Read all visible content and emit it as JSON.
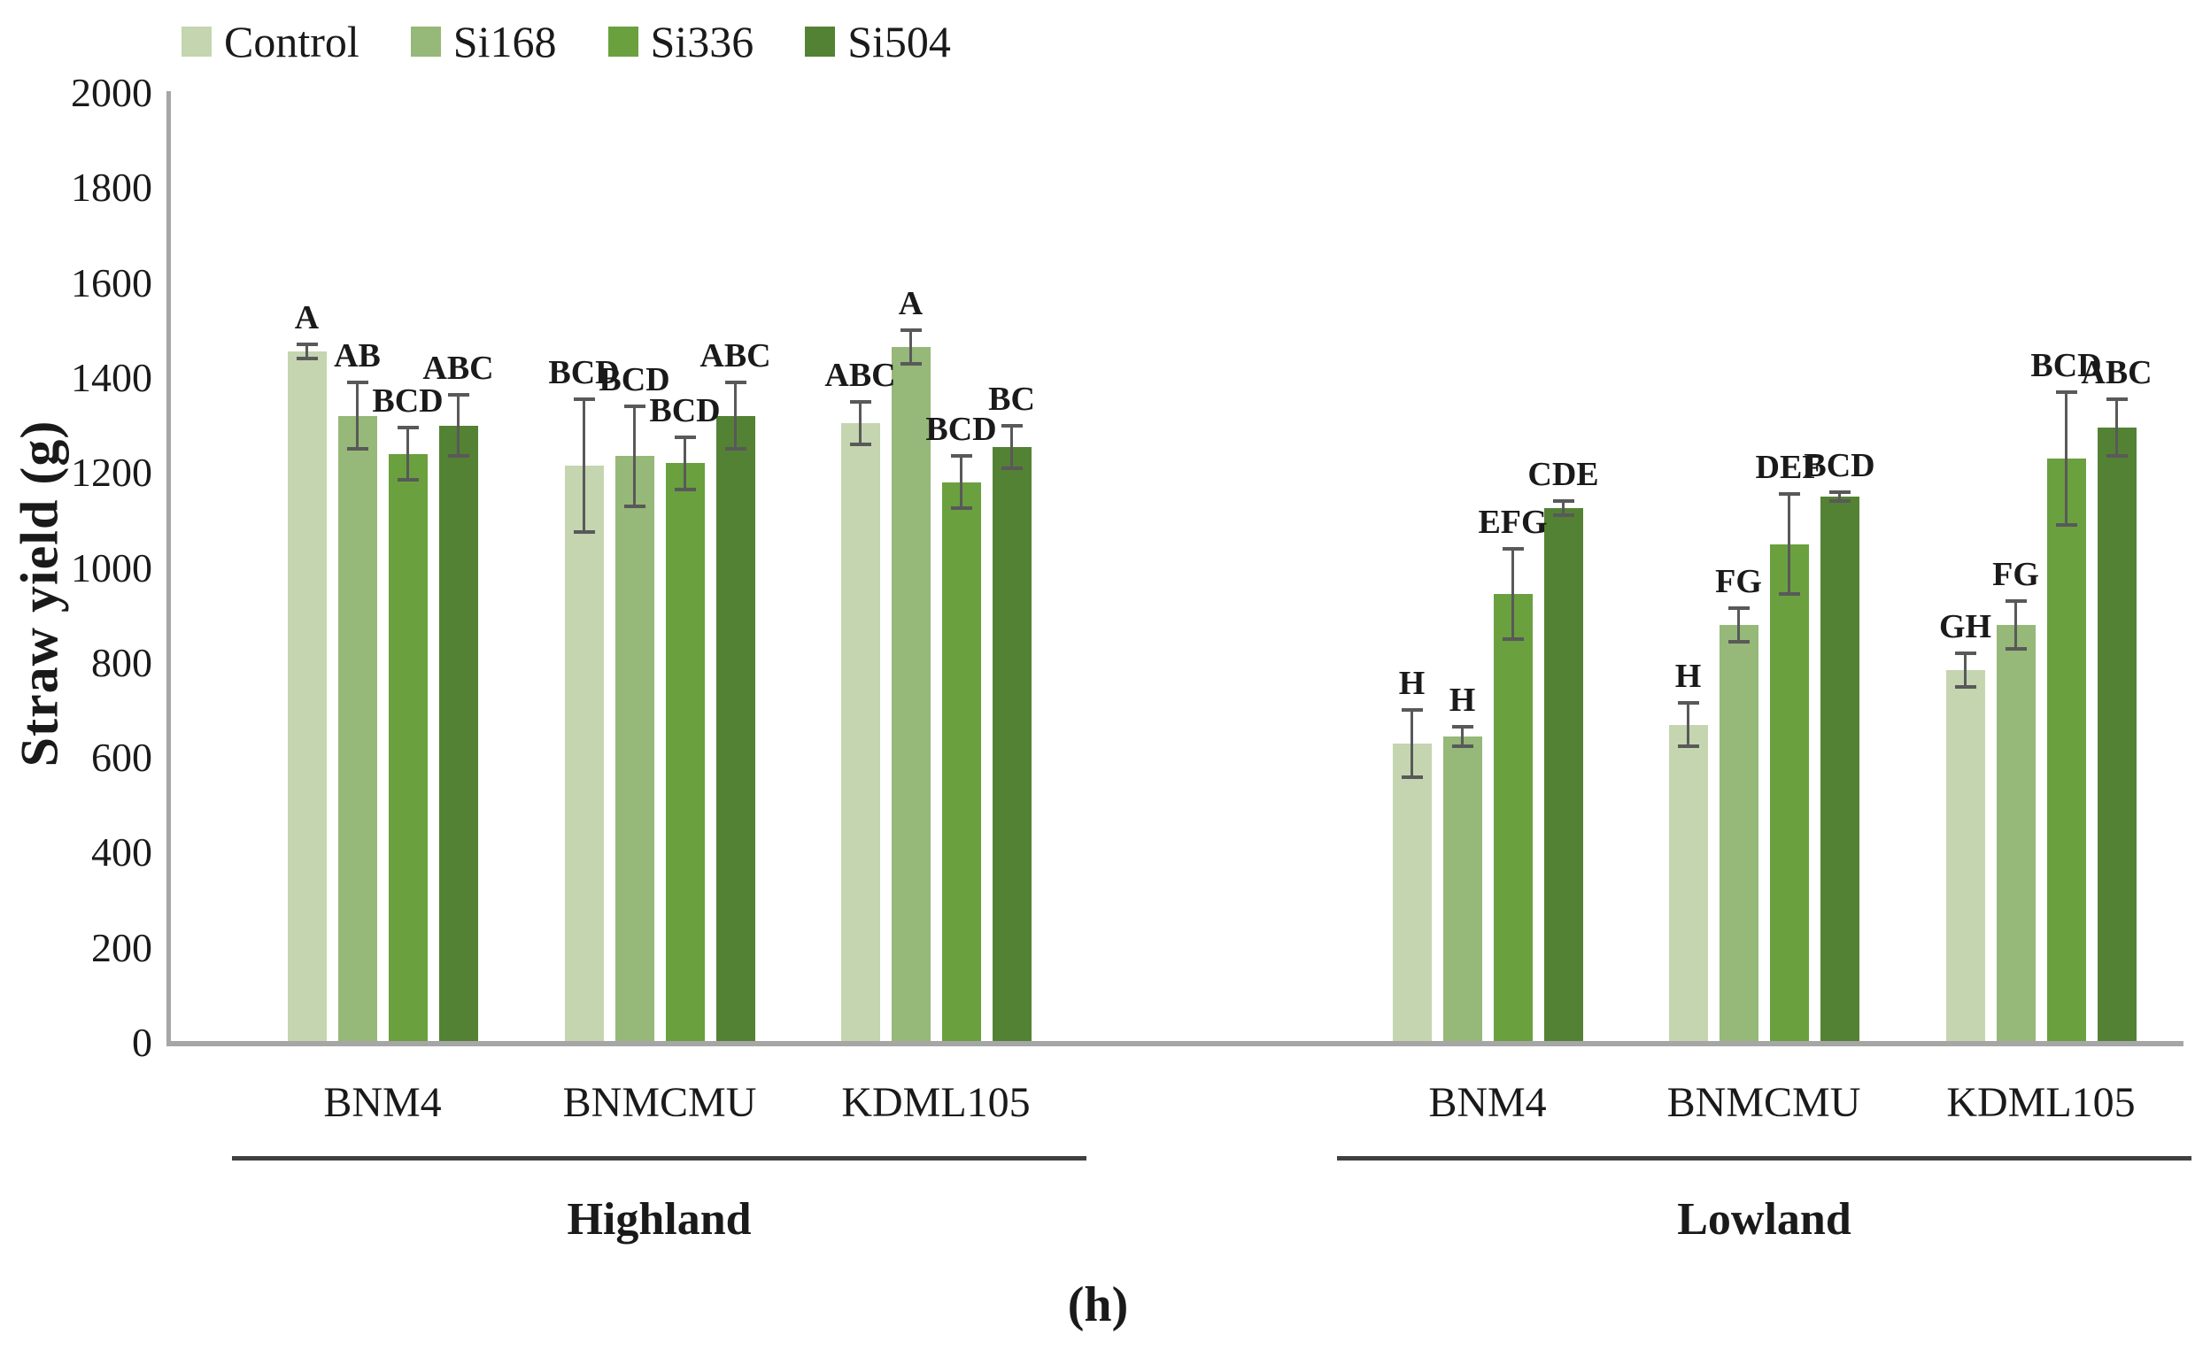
{
  "chart_data": {
    "type": "bar",
    "title": "",
    "ylabel": "Straw yield (g)",
    "xlabel": "",
    "ylim": [
      0,
      2000
    ],
    "ytick_step": 200,
    "yticks": [
      0,
      200,
      400,
      600,
      800,
      1000,
      1200,
      1400,
      1600,
      1800,
      2000
    ],
    "grid": false,
    "legend_position": "top",
    "legend": [
      "Control",
      "Si168",
      "Si336",
      "Si504"
    ],
    "colors": [
      "#c4d5b0",
      "#96b878",
      "#6aa03e",
      "#548234"
    ],
    "axis_color": "#a6a6a6",
    "error_bar_color": "#595959",
    "sections": [
      {
        "label": "Highland",
        "varieties": [
          "BNM4",
          "BNMCMU",
          "KDML105"
        ]
      },
      {
        "label": "Lowland",
        "varieties": [
          "BNM4",
          "BNMCMU",
          "KDML105"
        ]
      }
    ],
    "group_order": [
      "Highland BNM4",
      "Highland BNMCMU",
      "Highland KDML105",
      "Lowland BNM4",
      "Lowland BNMCMU",
      "Lowland KDML105"
    ],
    "series": [
      {
        "name": "Control",
        "color": "#c4d5b0",
        "values": [
          1455,
          1215,
          1305,
          630,
          670,
          785
        ],
        "errors": [
          15,
          140,
          45,
          70,
          45,
          35
        ],
        "letters": [
          "A",
          "BCD",
          "ABC",
          "H",
          "H",
          "GH"
        ]
      },
      {
        "name": "Si168",
        "color": "#96b878",
        "values": [
          1320,
          1235,
          1465,
          645,
          880,
          880
        ],
        "errors": [
          70,
          105,
          35,
          20,
          35,
          50
        ],
        "letters": [
          "AB",
          "BCD",
          "A",
          "H",
          "FG",
          "FG"
        ]
      },
      {
        "name": "Si336",
        "color": "#6aa03e",
        "values": [
          1240,
          1220,
          1180,
          945,
          1050,
          1230
        ],
        "errors": [
          55,
          55,
          55,
          95,
          105,
          140
        ],
        "letters": [
          "BCD",
          "BCD",
          "BCD",
          "EFG",
          "DEF",
          "BCD"
        ]
      },
      {
        "name": "Si504",
        "color": "#548234",
        "values": [
          1300,
          1320,
          1255,
          1125,
          1150,
          1295
        ],
        "errors": [
          65,
          70,
          45,
          15,
          10,
          60
        ],
        "letters": [
          "ABC",
          "ABC",
          "BC",
          "CDE",
          "BCD",
          "ABC"
        ]
      }
    ],
    "caption": "(h)"
  }
}
